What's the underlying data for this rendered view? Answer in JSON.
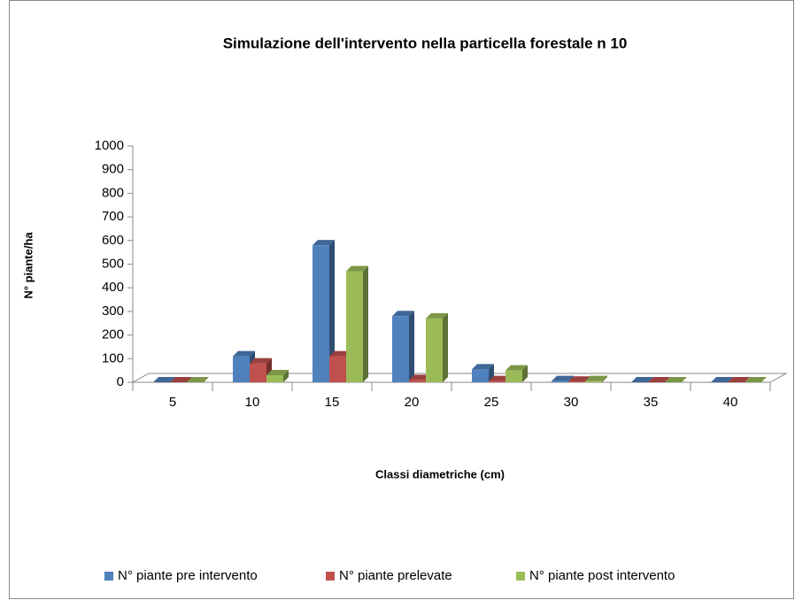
{
  "chart_data": {
    "type": "bar3d",
    "title": "Simulazione dell'intervento nella particella forestale n 10",
    "x_label": "Classi diametriche (cm)",
    "y_label": "N° piante/ha",
    "categories": [
      "5",
      "10",
      "15",
      "20",
      "25",
      "30",
      "35",
      "40"
    ],
    "series": [
      {
        "name": "N° piante pre intervento",
        "color": "#4f81bd",
        "values": [
          0,
          110,
          580,
          280,
          55,
          5,
          0,
          0
        ]
      },
      {
        "name": "N° piante prelevate",
        "color": "#c0504d",
        "values": [
          0,
          80,
          110,
          10,
          5,
          3,
          0,
          0
        ]
      },
      {
        "name": "N° piante post intervento",
        "color": "#9bbb59",
        "values": [
          0,
          30,
          470,
          270,
          50,
          5,
          0,
          0
        ]
      }
    ],
    "ylim": [
      0,
      1000
    ],
    "yticks": [
      0,
      100,
      200,
      300,
      400,
      500,
      600,
      700,
      800,
      900,
      1000
    ],
    "legend": "bottom"
  }
}
